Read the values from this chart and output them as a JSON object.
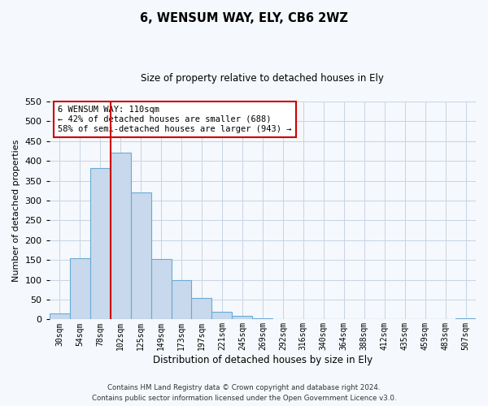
{
  "title": "6, WENSUM WAY, ELY, CB6 2WZ",
  "subtitle": "Size of property relative to detached houses in Ely",
  "xlabel": "Distribution of detached houses by size in Ely",
  "ylabel": "Number of detached properties",
  "bin_labels": [
    "30sqm",
    "54sqm",
    "78sqm",
    "102sqm",
    "125sqm",
    "149sqm",
    "173sqm",
    "197sqm",
    "221sqm",
    "245sqm",
    "269sqm",
    "292sqm",
    "316sqm",
    "340sqm",
    "364sqm",
    "388sqm",
    "412sqm",
    "435sqm",
    "459sqm",
    "483sqm",
    "507sqm"
  ],
  "bar_heights": [
    15,
    155,
    382,
    420,
    321,
    153,
    100,
    55,
    20,
    10,
    3,
    0,
    0,
    0,
    0,
    0,
    0,
    0,
    0,
    0,
    2
  ],
  "bar_color": "#c8d9ed",
  "bar_edgecolor": "#6aaad4",
  "vline_color": "#cc0000",
  "vline_xindex": 3,
  "annotation_title": "6 WENSUM WAY: 110sqm",
  "annotation_line1": "← 42% of detached houses are smaller (688)",
  "annotation_line2": "58% of semi-detached houses are larger (943) →",
  "annotation_box_edgecolor": "#cc0000",
  "ylim": [
    0,
    550
  ],
  "yticks": [
    0,
    50,
    100,
    150,
    200,
    250,
    300,
    350,
    400,
    450,
    500,
    550
  ],
  "footer1": "Contains HM Land Registry data © Crown copyright and database right 2024.",
  "footer2": "Contains public sector information licensed under the Open Government Licence v3.0.",
  "bg_color": "#f5f8fc",
  "plot_bg_color": "#f5f8fc",
  "grid_color": "#c8d4e3"
}
